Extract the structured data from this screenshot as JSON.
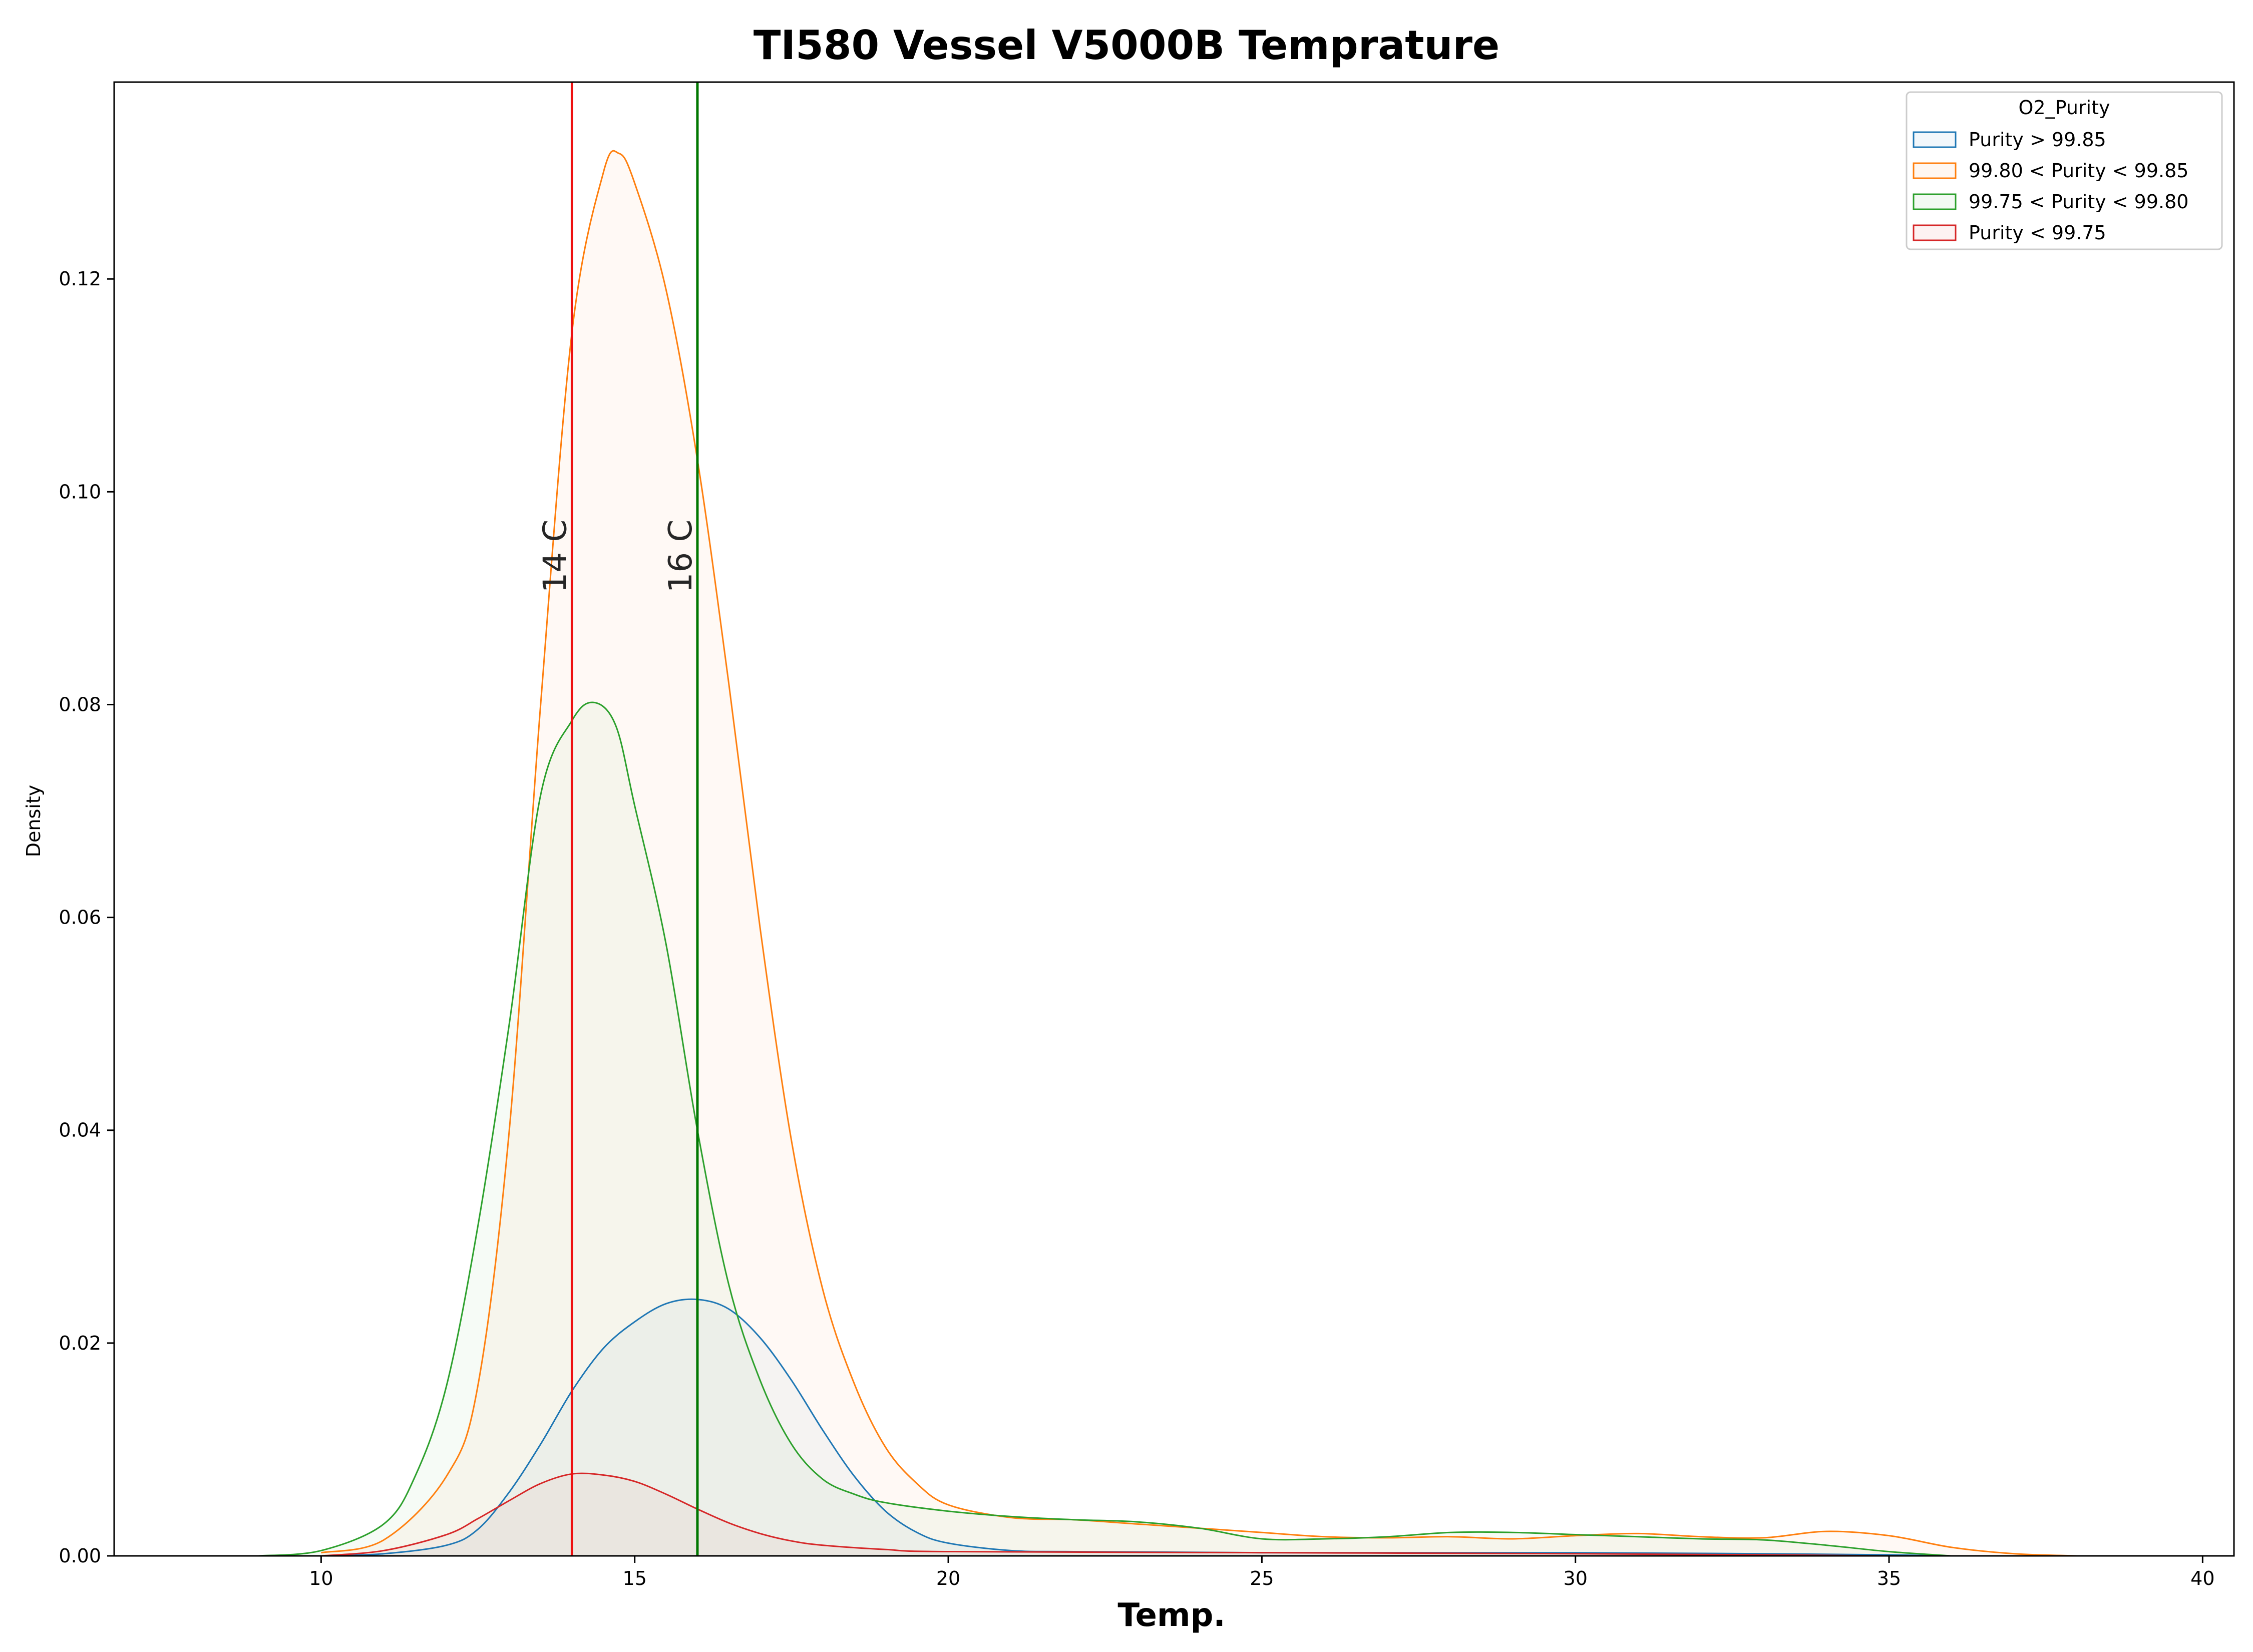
{
  "chart_data": {
    "type": "area",
    "title": "TI580 Vessel V5000B Temprature",
    "xlabel": "Temp.",
    "ylabel": "Density",
    "xlim": [
      6.7,
      40.5
    ],
    "ylim": [
      0,
      0.1385
    ],
    "xticks": [
      10,
      15,
      20,
      25,
      30,
      35,
      40
    ],
    "yticks": [
      0.0,
      0.02,
      0.04,
      0.06,
      0.08,
      0.1,
      0.12
    ],
    "ytick_labels": [
      "0.00",
      "0.02",
      "0.04",
      "0.06",
      "0.08",
      "0.10",
      "0.12"
    ],
    "grid": false,
    "legend": {
      "title": "O2_Purity",
      "placement": "top-right"
    },
    "series": [
      {
        "name": "Purity > 99.85",
        "color": "#1f77b4",
        "x": [
          10,
          11,
          12,
          12.5,
          13,
          13.5,
          14,
          14.5,
          15,
          15.5,
          16,
          16.5,
          17,
          17.5,
          18,
          18.5,
          19,
          19.5,
          20,
          21,
          22,
          25,
          30,
          33,
          35,
          36
        ],
        "y": [
          0,
          0.0002,
          0.001,
          0.0025,
          0.006,
          0.0105,
          0.0155,
          0.0195,
          0.022,
          0.0237,
          0.0241,
          0.0232,
          0.0205,
          0.0165,
          0.0118,
          0.0075,
          0.0042,
          0.0022,
          0.0012,
          0.0005,
          0.0004,
          0.0003,
          0.0003,
          0.0002,
          0.0001,
          0
        ]
      },
      {
        "name": "99.80 < Purity < 99.85",
        "color": "#ff7f0e",
        "x": [
          10,
          11,
          12,
          12.5,
          13,
          13.5,
          14,
          14.5,
          14.75,
          15,
          15.5,
          16,
          16.5,
          17,
          17.5,
          18,
          18.5,
          19,
          19.5,
          20,
          21,
          22,
          23,
          24,
          25,
          26,
          27,
          28,
          29,
          30,
          31,
          32,
          33,
          34,
          35,
          36,
          37,
          38
        ],
        "y": [
          0.0003,
          0.0015,
          0.0075,
          0.016,
          0.04,
          0.08,
          0.115,
          0.13,
          0.1318,
          0.129,
          0.119,
          0.103,
          0.082,
          0.059,
          0.039,
          0.025,
          0.0162,
          0.0102,
          0.0068,
          0.0048,
          0.0036,
          0.0034,
          0.003,
          0.0026,
          0.0022,
          0.0018,
          0.0017,
          0.0018,
          0.0016,
          0.0019,
          0.0021,
          0.0018,
          0.0017,
          0.0023,
          0.0019,
          0.0008,
          0.0002,
          0
        ]
      },
      {
        "name": "99.75 < Purity < 99.80",
        "color": "#2ca02c",
        "x": [
          9,
          10,
          11,
          11.5,
          12,
          12.5,
          13,
          13.5,
          14,
          14.35,
          14.7,
          15,
          15.5,
          16,
          16.5,
          17,
          17.5,
          18,
          18.5,
          19,
          20,
          21,
          22,
          23,
          24,
          25,
          26,
          27,
          28,
          29,
          30,
          31,
          32,
          33,
          34,
          35,
          36
        ],
        "y": [
          0,
          0.0005,
          0.003,
          0.0075,
          0.016,
          0.031,
          0.05,
          0.0715,
          0.0785,
          0.0802,
          0.078,
          0.0705,
          0.0575,
          0.04,
          0.0255,
          0.0165,
          0.0105,
          0.0072,
          0.0058,
          0.005,
          0.0042,
          0.0037,
          0.0034,
          0.0032,
          0.0026,
          0.0016,
          0.0016,
          0.0018,
          0.0022,
          0.0022,
          0.002,
          0.0018,
          0.0016,
          0.0015,
          0.001,
          0.0004,
          0
        ]
      },
      {
        "name": "Purity < 99.75",
        "color": "#d62728",
        "x": [
          10,
          11,
          12,
          12.5,
          13,
          13.5,
          14,
          14.5,
          15,
          15.5,
          16,
          16.5,
          17,
          17.5,
          18,
          19,
          20,
          25,
          30,
          33,
          35
        ],
        "y": [
          0,
          0.0005,
          0.002,
          0.0035,
          0.0052,
          0.0068,
          0.0077,
          0.0076,
          0.007,
          0.0058,
          0.0044,
          0.0031,
          0.0021,
          0.0014,
          0.001,
          0.0006,
          0.0004,
          0.0003,
          0.0002,
          0.0001,
          0
        ]
      }
    ],
    "vlines": [
      {
        "x": 14,
        "label": "14 C",
        "color": "#ee1111"
      },
      {
        "x": 16,
        "label": "16 C",
        "color": "#007700"
      }
    ]
  }
}
